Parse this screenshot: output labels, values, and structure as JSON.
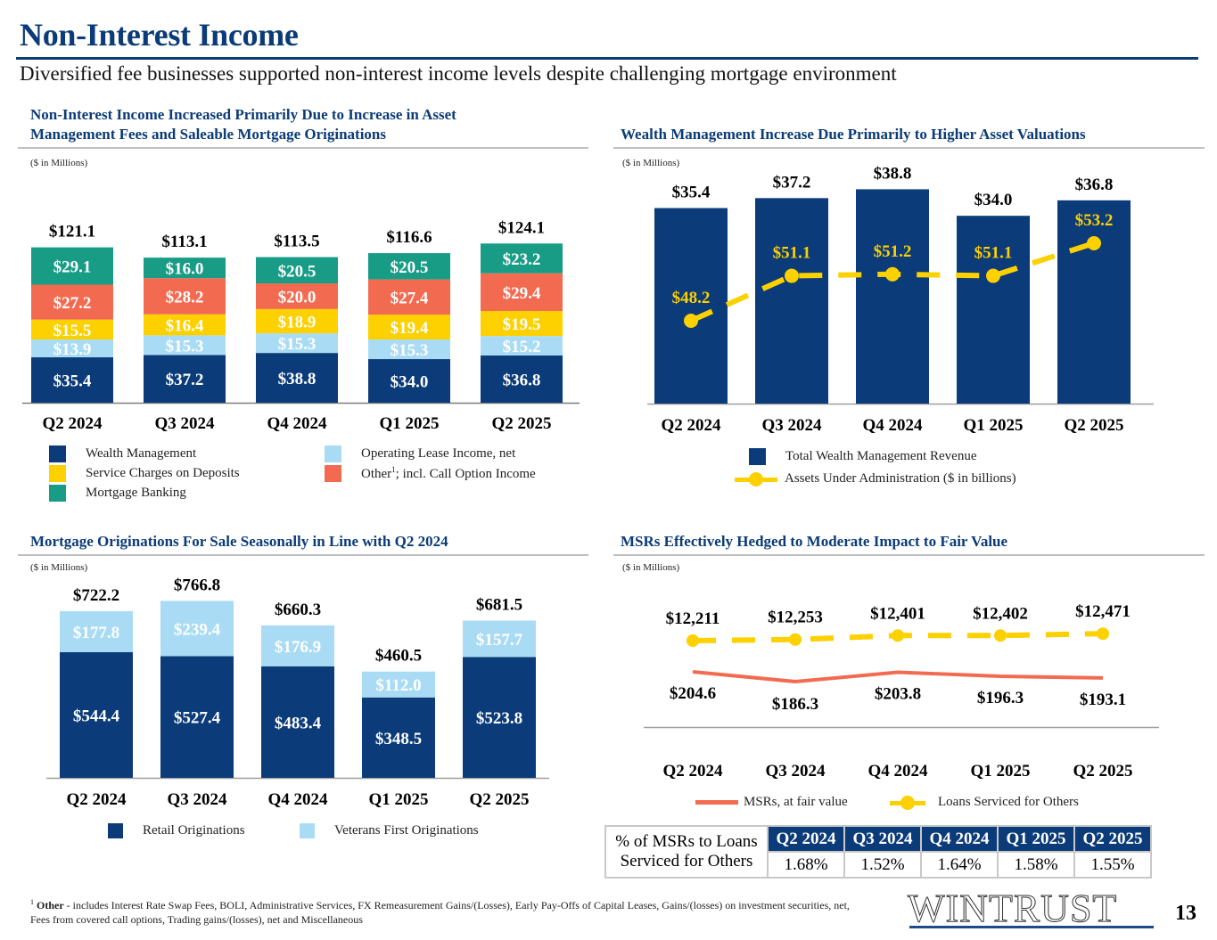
{
  "page": {
    "title": "Non-Interest Income",
    "subtitle": "Diversified fee businesses supported non-interest income levels despite challenging mortgage environment",
    "page_number": "13",
    "logo": "WINTRUST",
    "footnote_marker": "1",
    "footnote_bold": "Other",
    "footnote_text": " - includes Interest Rate Swap Fees, BOLI, Administrative Services, FX Remeasurement Gains/(Losses), Early Pay-Offs of Capital Leases, Gains/(losses) on investment securities, net, Fees from covered call options, Trading gains/(losses), net and Miscellaneous"
  },
  "colors": {
    "navy": "#0b3b78",
    "light_blue": "#a9dcf4",
    "yellow": "#fdd000",
    "coral": "#f26b50",
    "teal": "#189c86",
    "gray_rule": "#bfbfbf"
  },
  "panels": {
    "nii": {
      "title_line1": "Non-Interest Income Increased Primarily Due to Increase in Asset",
      "title_line2": "Management Fees and Saleable Mortgage Originations",
      "units": "($ in Millions)"
    },
    "wealth": {
      "title": "Wealth Management Increase Due Primarily to Higher Asset Valuations",
      "units": "($ in Millions)"
    },
    "mortgage": {
      "title": "Mortgage Originations For Sale Seasonally in Line with Q2 2024",
      "units": "($ in Millions)"
    },
    "msr": {
      "title": "MSRs Effectively Hedged to Moderate Impact to Fair Value",
      "units": "($ in Millions)"
    }
  },
  "msr_table": {
    "row_label_line1": "% of MSRs to Loans",
    "row_label_line2": "Serviced for Others",
    "headers": [
      "Q2 2024",
      "Q3 2024",
      "Q4 2024",
      "Q1 2025",
      "Q2 2025"
    ],
    "values": [
      "1.68%",
      "1.52%",
      "1.64%",
      "1.58%",
      "1.55%"
    ]
  },
  "chart_data": [
    {
      "id": "non_interest_income",
      "type": "bar",
      "stacked": true,
      "title": "Non-Interest Income Increased Primarily Due to Increase in Asset Management Fees and Saleable Mortgage Originations",
      "ylabel": "($ in Millions)",
      "categories": [
        "Q2 2024",
        "Q3 2024",
        "Q4 2024",
        "Q1 2025",
        "Q2 2025"
      ],
      "series": [
        {
          "name": "Wealth Management",
          "color": "#0b3b78",
          "values": [
            35.4,
            37.2,
            38.8,
            34.0,
            36.8
          ],
          "labels": [
            "$35.4",
            "$37.2",
            "$38.8",
            "$34.0",
            "$36.8"
          ]
        },
        {
          "name": "Operating Lease Income, net",
          "color": "#a9dcf4",
          "values": [
            13.9,
            15.3,
            15.3,
            15.3,
            15.2
          ],
          "labels": [
            "$13.9",
            "$15.3",
            "$15.3",
            "$15.3",
            "$15.2"
          ]
        },
        {
          "name": "Service Charges on Deposits",
          "color": "#fdd000",
          "values": [
            15.5,
            16.4,
            18.9,
            19.4,
            19.5
          ],
          "labels": [
            "$15.5",
            "$16.4",
            "$18.9",
            "$19.4",
            "$19.5"
          ]
        },
        {
          "name": "Other¹; incl. Call Option Income",
          "color": "#f26b50",
          "values": [
            27.2,
            28.2,
            20.0,
            27.4,
            29.4
          ],
          "labels": [
            "$27.2",
            "$28.2",
            "$20.0",
            "$27.4",
            "$29.4"
          ]
        },
        {
          "name": "Mortgage Banking",
          "color": "#189c86",
          "values": [
            29.1,
            16.0,
            20.5,
            20.5,
            23.2
          ],
          "labels": [
            "$29.1",
            "$16.0",
            "$20.5",
            "$20.5",
            "$23.2"
          ]
        }
      ],
      "totals": [
        121.1,
        113.1,
        113.5,
        116.6,
        124.1
      ],
      "total_labels": [
        "$121.1",
        "$113.1",
        "$113.5",
        "$116.6",
        "$124.1"
      ],
      "legend": [
        {
          "label": "Wealth Management",
          "color": "#0b3b78"
        },
        {
          "label": "Service Charges on Deposits",
          "color": "#fdd000"
        },
        {
          "label": "Mortgage Banking",
          "color": "#189c86"
        },
        {
          "label": "Operating Lease Income, net",
          "color": "#a9dcf4"
        },
        {
          "label_main": "Other",
          "label_sup": "1",
          "label_rest": "; incl. Call Option Income",
          "color": "#f26b50"
        }
      ],
      "legend_position": "bottom",
      "ylim": [
        0,
        130
      ],
      "grid": false
    },
    {
      "id": "wealth_management",
      "type": "bar",
      "title": "Wealth Management Increase Due Primarily to Higher Asset Valuations",
      "ylabel": "($ in Millions)",
      "categories": [
        "Q2 2024",
        "Q3 2024",
        "Q4 2024",
        "Q1 2025",
        "Q2 2025"
      ],
      "series": [
        {
          "name": "Total Wealth Management Revenue",
          "type": "bar",
          "color": "#0b3b78",
          "values": [
            35.4,
            37.2,
            38.8,
            34.0,
            36.8
          ],
          "labels": [
            "$35.4",
            "$37.2",
            "$38.8",
            "$34.0",
            "$36.8"
          ]
        },
        {
          "name": "Assets Under Administration ($ in billions)",
          "type": "line",
          "style": "dashed",
          "color": "#fdd000",
          "values": [
            48.2,
            51.1,
            51.2,
            51.1,
            53.2
          ],
          "labels": [
            "$48.2",
            "$51.1",
            "$51.2",
            "$51.1",
            "$53.2"
          ]
        }
      ],
      "legend": [
        {
          "label": "Total Wealth Management Revenue",
          "kind": "swatch",
          "color": "#0b3b78"
        },
        {
          "label": "Assets Under Administration ($ in billions)",
          "kind": "line-marker",
          "color": "#fdd000"
        }
      ],
      "legend_position": "bottom",
      "ylim": [
        0,
        40
      ],
      "aua_range": [
        20,
        60
      ],
      "grid": false
    },
    {
      "id": "mortgage_originations",
      "type": "bar",
      "stacked": true,
      "title": "Mortgage Originations For Sale Seasonally in Line with Q2 2024",
      "ylabel": "($ in Millions)",
      "categories": [
        "Q2 2024",
        "Q3 2024",
        "Q4 2024",
        "Q1 2025",
        "Q2 2025"
      ],
      "series": [
        {
          "name": "Retail Originations",
          "color": "#0b3b78",
          "values": [
            544.4,
            527.4,
            483.4,
            348.5,
            523.8
          ],
          "labels": [
            "$544.4",
            "$527.4",
            "$483.4",
            "$348.5",
            "$523.8"
          ]
        },
        {
          "name": "Veterans First Originations",
          "color": "#a9dcf4",
          "values": [
            177.8,
            239.4,
            176.9,
            112.0,
            157.7
          ],
          "labels": [
            "$177.8",
            "$239.4",
            "$176.9",
            "$112.0",
            "$157.7"
          ]
        }
      ],
      "totals": [
        722.2,
        766.8,
        660.3,
        460.5,
        681.5
      ],
      "total_labels": [
        "$722.2",
        "$766.8",
        "$660.3",
        "$460.5",
        "$681.5"
      ],
      "legend": [
        {
          "label": "Retail Originations",
          "color": "#0b3b78"
        },
        {
          "label": "Veterans First Originations",
          "color": "#a9dcf4"
        }
      ],
      "legend_position": "bottom",
      "ylim": [
        0,
        850
      ],
      "grid": false
    },
    {
      "id": "msr_fair_value",
      "type": "line",
      "title": "MSRs Effectively Hedged to Moderate Impact to Fair Value",
      "ylabel": "($ in Millions)",
      "categories": [
        "Q2 2024",
        "Q3 2024",
        "Q4 2024",
        "Q1 2025",
        "Q2 2025"
      ],
      "series": [
        {
          "name": "MSRs, at fair value",
          "style": "solid",
          "color": "#f26b50",
          "values": [
            204.6,
            186.3,
            203.8,
            196.3,
            193.1
          ],
          "labels": [
            "$204.6",
            "$186.3",
            "$203.8",
            "$196.3",
            "$193.1"
          ]
        },
        {
          "name": "Loans Serviced for Others",
          "style": "dashed",
          "marker": "circle",
          "color": "#fdd000",
          "values": [
            12211,
            12253,
            12401,
            12402,
            12471
          ],
          "labels": [
            "$12,211",
            "$12,253",
            "$12,401",
            "$12,402",
            "$12,471"
          ]
        }
      ],
      "legend": [
        {
          "label": "MSRs, at fair value",
          "kind": "line",
          "color": "#f26b50"
        },
        {
          "label": "Loans Serviced for Others",
          "kind": "line-marker",
          "color": "#fdd000"
        }
      ],
      "legend_position": "bottom",
      "grid": false
    }
  ]
}
